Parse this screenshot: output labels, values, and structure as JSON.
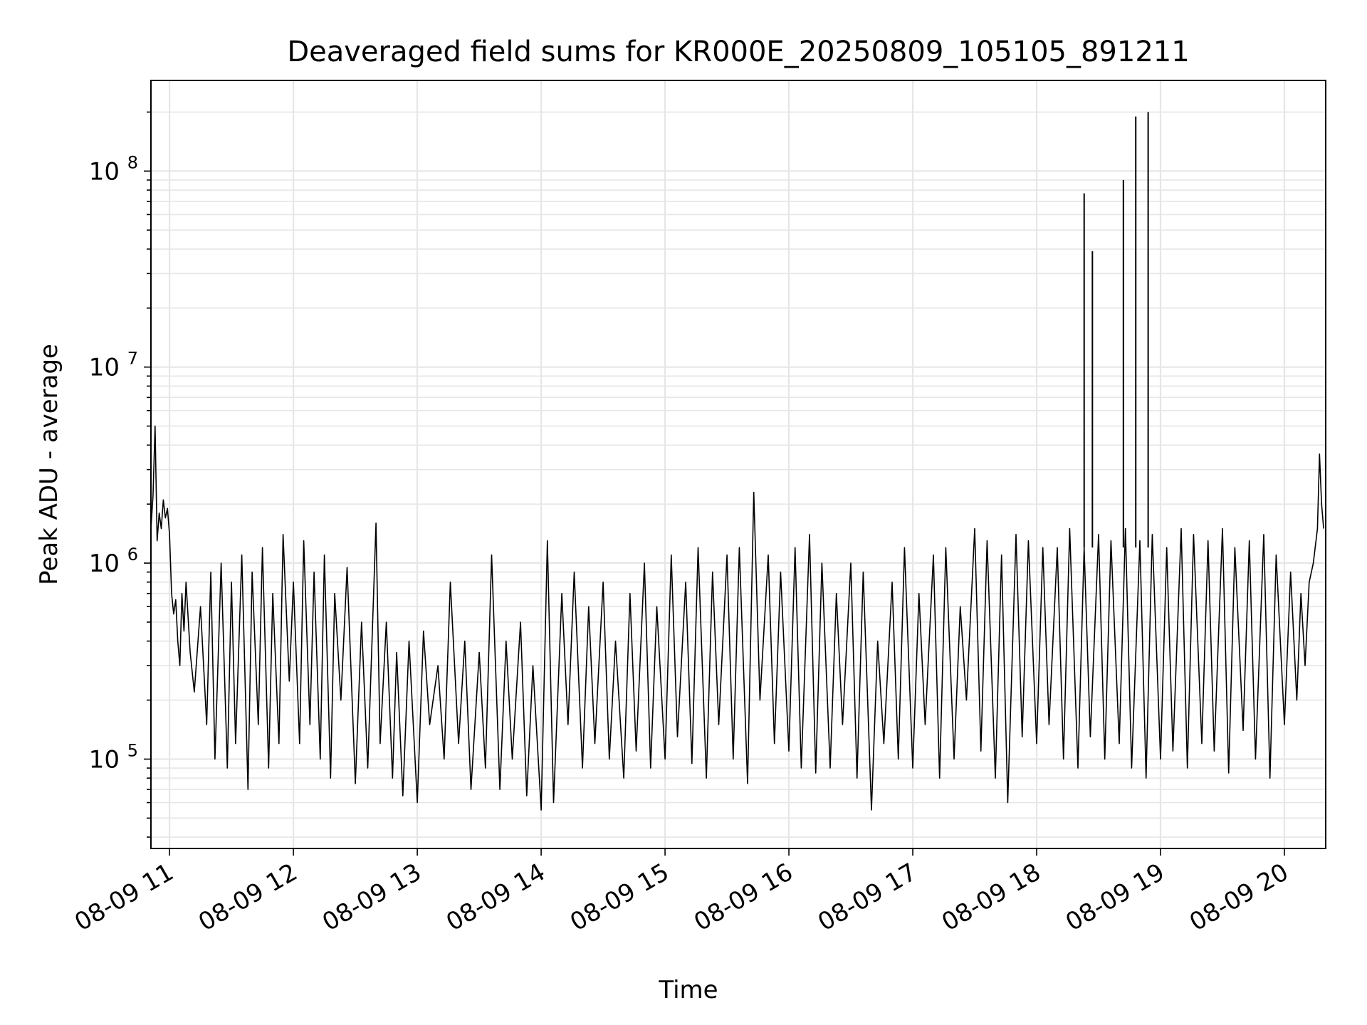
{
  "chart_data": {
    "type": "line",
    "title": "Deaveraged field sums for KR000E_20250809_105105_891211",
    "xlabel": "Time",
    "ylabel": "Peak ADU - average",
    "yscale": "log",
    "xlim": [
      "2025-08-09T10:51:00",
      "2025-08-09T20:20:00"
    ],
    "ylim": [
      35000,
      290000000
    ],
    "grid": true,
    "legend": "none",
    "line_color": "#000000",
    "x_ticks": [
      "08-09 11",
      "08-09 12",
      "08-09 13",
      "08-09 14",
      "08-09 15",
      "08-09 16",
      "08-09 17",
      "08-09 18",
      "08-09 19",
      "08-09 20"
    ],
    "y_ticks": [
      {
        "value": 100000,
        "base": "10",
        "exp": "5"
      },
      {
        "value": 1000000,
        "base": "10",
        "exp": "6"
      },
      {
        "value": 10000000,
        "base": "10",
        "exp": "7"
      },
      {
        "value": 100000000,
        "base": "10",
        "exp": "8"
      }
    ],
    "series": [
      {
        "points": [
          [
            "10:51",
            1500000
          ],
          [
            "10:52",
            2200000
          ],
          [
            "10:53",
            5000000
          ],
          [
            "10:54",
            1300000
          ],
          [
            "10:55",
            1800000
          ],
          [
            "10:56",
            1500000
          ],
          [
            "10:57",
            2100000
          ],
          [
            "10:58",
            1700000
          ],
          [
            "10:59",
            1900000
          ],
          [
            "11:00",
            1400000
          ],
          [
            "11:01",
            700000
          ],
          [
            "11:02",
            550000
          ],
          [
            "11:03",
            650000
          ],
          [
            "11:04",
            400000
          ],
          [
            "11:05",
            300000
          ],
          [
            "11:06",
            700000
          ],
          [
            "11:07",
            450000
          ],
          [
            "11:08",
            800000
          ],
          [
            "11:10",
            350000
          ],
          [
            "11:12",
            220000
          ],
          [
            "11:15",
            600000
          ],
          [
            "11:18",
            150000
          ],
          [
            "11:20",
            900000
          ],
          [
            "11:22",
            100000
          ],
          [
            "11:25",
            1000000
          ],
          [
            "11:28",
            90000
          ],
          [
            "11:30",
            800000
          ],
          [
            "11:32",
            120000
          ],
          [
            "11:35",
            1100000
          ],
          [
            "11:38",
            70000
          ],
          [
            "11:40",
            900000
          ],
          [
            "11:43",
            150000
          ],
          [
            "11:45",
            1200000
          ],
          [
            "11:48",
            90000
          ],
          [
            "11:50",
            700000
          ],
          [
            "11:53",
            120000
          ],
          [
            "11:55",
            1400000
          ],
          [
            "11:58",
            250000
          ],
          [
            "12:00",
            800000
          ],
          [
            "12:03",
            120000
          ],
          [
            "12:05",
            1300000
          ],
          [
            "12:08",
            150000
          ],
          [
            "12:10",
            900000
          ],
          [
            "12:13",
            100000
          ],
          [
            "12:15",
            1100000
          ],
          [
            "12:18",
            80000
          ],
          [
            "12:20",
            700000
          ],
          [
            "12:23",
            200000
          ],
          [
            "12:26",
            950000
          ],
          [
            "12:30",
            75000
          ],
          [
            "12:33",
            500000
          ],
          [
            "12:36",
            90000
          ],
          [
            "12:40",
            1600000
          ],
          [
            "12:42",
            120000
          ],
          [
            "12:45",
            500000
          ],
          [
            "12:48",
            80000
          ],
          [
            "12:50",
            350000
          ],
          [
            "12:53",
            65000
          ],
          [
            "12:56",
            400000
          ],
          [
            "13:00",
            60000
          ],
          [
            "13:03",
            450000
          ],
          [
            "13:06",
            150000
          ],
          [
            "13:10",
            300000
          ],
          [
            "13:13",
            100000
          ],
          [
            "13:16",
            800000
          ],
          [
            "13:20",
            120000
          ],
          [
            "13:23",
            400000
          ],
          [
            "13:26",
            70000
          ],
          [
            "13:30",
            350000
          ],
          [
            "13:33",
            90000
          ],
          [
            "13:36",
            1100000
          ],
          [
            "13:40",
            70000
          ],
          [
            "13:43",
            400000
          ],
          [
            "13:46",
            100000
          ],
          [
            "13:50",
            500000
          ],
          [
            "13:53",
            65000
          ],
          [
            "13:56",
            300000
          ],
          [
            "14:00",
            55000
          ],
          [
            "14:03",
            1300000
          ],
          [
            "14:06",
            60000
          ],
          [
            "14:10",
            700000
          ],
          [
            "14:13",
            150000
          ],
          [
            "14:16",
            900000
          ],
          [
            "14:20",
            90000
          ],
          [
            "14:23",
            600000
          ],
          [
            "14:26",
            120000
          ],
          [
            "14:30",
            800000
          ],
          [
            "14:33",
            100000
          ],
          [
            "14:36",
            400000
          ],
          [
            "14:40",
            80000
          ],
          [
            "14:43",
            700000
          ],
          [
            "14:46",
            110000
          ],
          [
            "14:50",
            1000000
          ],
          [
            "14:53",
            90000
          ],
          [
            "14:56",
            600000
          ],
          [
            "15:00",
            100000
          ],
          [
            "15:03",
            1100000
          ],
          [
            "15:06",
            130000
          ],
          [
            "15:10",
            800000
          ],
          [
            "15:13",
            95000
          ],
          [
            "15:16",
            1200000
          ],
          [
            "15:20",
            80000
          ],
          [
            "15:23",
            900000
          ],
          [
            "15:26",
            150000
          ],
          [
            "15:30",
            1100000
          ],
          [
            "15:33",
            100000
          ],
          [
            "15:36",
            1200000
          ],
          [
            "15:40",
            75000
          ],
          [
            "15:43",
            2300000
          ],
          [
            "15:46",
            200000
          ],
          [
            "15:50",
            1100000
          ],
          [
            "15:53",
            120000
          ],
          [
            "15:56",
            900000
          ],
          [
            "16:00",
            110000
          ],
          [
            "16:03",
            1200000
          ],
          [
            "16:06",
            90000
          ],
          [
            "16:10",
            1400000
          ],
          [
            "16:13",
            85000
          ],
          [
            "16:16",
            1000000
          ],
          [
            "16:20",
            90000
          ],
          [
            "16:23",
            700000
          ],
          [
            "16:26",
            150000
          ],
          [
            "16:30",
            1000000
          ],
          [
            "16:33",
            80000
          ],
          [
            "16:36",
            900000
          ],
          [
            "16:40",
            55000
          ],
          [
            "16:43",
            400000
          ],
          [
            "16:46",
            120000
          ],
          [
            "16:50",
            800000
          ],
          [
            "16:53",
            100000
          ],
          [
            "16:56",
            1200000
          ],
          [
            "17:00",
            90000
          ],
          [
            "17:03",
            700000
          ],
          [
            "17:06",
            150000
          ],
          [
            "17:10",
            1100000
          ],
          [
            "17:13",
            80000
          ],
          [
            "17:16",
            1200000
          ],
          [
            "17:20",
            100000
          ],
          [
            "17:23",
            600000
          ],
          [
            "17:26",
            200000
          ],
          [
            "17:30",
            1500000
          ],
          [
            "17:33",
            110000
          ],
          [
            "17:36",
            1300000
          ],
          [
            "17:40",
            80000
          ],
          [
            "17:43",
            1100000
          ],
          [
            "17:46",
            60000
          ],
          [
            "17:50",
            1400000
          ],
          [
            "17:53",
            130000
          ],
          [
            "17:56",
            1300000
          ],
          [
            "18:00",
            120000
          ],
          [
            "18:03",
            1200000
          ],
          [
            "18:06",
            150000
          ],
          [
            "18:10",
            1200000
          ],
          [
            "18:13",
            100000
          ],
          [
            "18:16",
            1500000
          ],
          [
            "18:20",
            90000
          ],
          [
            "18:23",
            1200000
          ],
          [
            "18:26",
            130000
          ],
          [
            "18:30",
            1400000
          ],
          [
            "18:33",
            100000
          ],
          [
            "18:36",
            1300000
          ],
          [
            "18:40",
            120000
          ],
          [
            "18:43",
            1500000
          ],
          [
            "18:46",
            90000
          ],
          [
            "18:50",
            1300000
          ],
          [
            "18:53",
            80000
          ],
          [
            "18:56",
            1400000
          ],
          [
            "19:00",
            100000
          ],
          [
            "19:03",
            1200000
          ],
          [
            "19:06",
            110000
          ],
          [
            "19:10",
            1500000
          ],
          [
            "19:13",
            90000
          ],
          [
            "19:16",
            1400000
          ],
          [
            "19:20",
            120000
          ],
          [
            "19:23",
            1300000
          ],
          [
            "19:26",
            110000
          ],
          [
            "19:30",
            1500000
          ],
          [
            "19:33",
            85000
          ],
          [
            "19:36",
            1200000
          ],
          [
            "19:40",
            140000
          ],
          [
            "19:43",
            1300000
          ],
          [
            "19:46",
            100000
          ],
          [
            "19:50",
            1400000
          ],
          [
            "19:53",
            80000
          ],
          [
            "19:56",
            1100000
          ],
          [
            "20:00",
            150000
          ],
          [
            "20:03",
            900000
          ],
          [
            "20:06",
            200000
          ],
          [
            "20:08",
            700000
          ],
          [
            "20:10",
            300000
          ],
          [
            "20:12",
            800000
          ],
          [
            "20:14",
            1000000
          ],
          [
            "20:16",
            1500000
          ],
          [
            "20:17",
            3600000
          ],
          [
            "20:18",
            2000000
          ],
          [
            "20:19",
            1500000
          ]
        ],
        "spikes": [
          [
            "18:23",
            77000000
          ],
          [
            "18:27",
            39000000
          ],
          [
            "18:42",
            90000000
          ],
          [
            "18:48",
            190000000
          ],
          [
            "18:54",
            200000000
          ]
        ]
      }
    ]
  }
}
